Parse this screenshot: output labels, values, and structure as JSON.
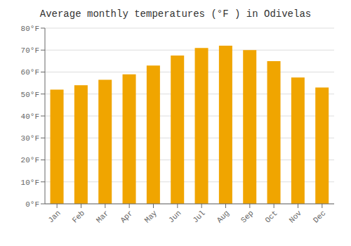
{
  "chart_data": {
    "type": "bar",
    "title": "Average monthly temperatures (°F ) in Odivelas",
    "categories": [
      "Jan",
      "Feb",
      "Mar",
      "Apr",
      "May",
      "Jun",
      "Jul",
      "Aug",
      "Sep",
      "Oct",
      "Nov",
      "Dec"
    ],
    "values": [
      52,
      54,
      56.5,
      59,
      63,
      67.5,
      71,
      72,
      70,
      65,
      57.5,
      53
    ],
    "color": "#F0A500",
    "ylim": [
      0,
      80
    ],
    "yticks": [
      {
        "value": 0,
        "label": "0°F"
      },
      {
        "value": 10,
        "label": "10°F"
      },
      {
        "value": 20,
        "label": "20°F"
      },
      {
        "value": 30,
        "label": "30°F"
      },
      {
        "value": 40,
        "label": "40°F"
      },
      {
        "value": 50,
        "label": "50°F"
      },
      {
        "value": 60,
        "label": "60°F"
      },
      {
        "value": 70,
        "label": "70°F"
      },
      {
        "value": 80,
        "label": "80°F"
      }
    ],
    "grid": true
  }
}
